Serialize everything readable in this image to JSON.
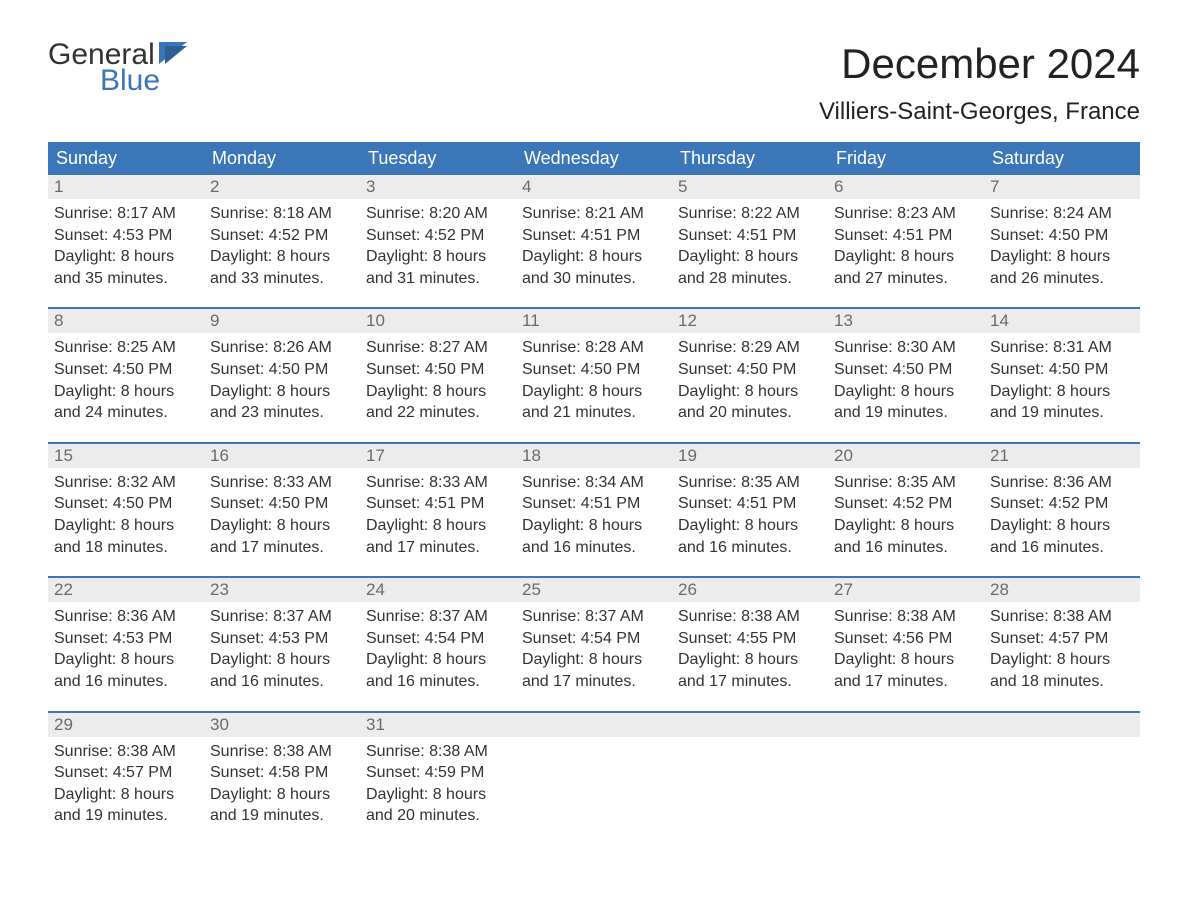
{
  "brand": {
    "top": "General",
    "bottom": "Blue"
  },
  "title": "December 2024",
  "location": "Villiers-Saint-Georges, France",
  "colors": {
    "header_bg": "#3a76b8",
    "header_text": "#ffffff",
    "daynum_bg": "#ececec",
    "daynum_text": "#6b6b6b",
    "body_text": "#333333",
    "rule": "#3a76b8",
    "brand_blue": "#3a76b8",
    "brand_dark": "#333333",
    "page_bg": "#ffffff"
  },
  "typography": {
    "title_fontsize": 42,
    "location_fontsize": 24,
    "dow_fontsize": 18,
    "daynum_fontsize": 17,
    "body_fontsize": 16,
    "logo_fontsize": 30
  },
  "days_of_week": [
    "Sunday",
    "Monday",
    "Tuesday",
    "Wednesday",
    "Thursday",
    "Friday",
    "Saturday"
  ],
  "weeks": [
    [
      {
        "n": "1",
        "sunrise": "8:17 AM",
        "sunset": "4:53 PM",
        "dl1": "Daylight: 8 hours",
        "dl2": "and 35 minutes."
      },
      {
        "n": "2",
        "sunrise": "8:18 AM",
        "sunset": "4:52 PM",
        "dl1": "Daylight: 8 hours",
        "dl2": "and 33 minutes."
      },
      {
        "n": "3",
        "sunrise": "8:20 AM",
        "sunset": "4:52 PM",
        "dl1": "Daylight: 8 hours",
        "dl2": "and 31 minutes."
      },
      {
        "n": "4",
        "sunrise": "8:21 AM",
        "sunset": "4:51 PM",
        "dl1": "Daylight: 8 hours",
        "dl2": "and 30 minutes."
      },
      {
        "n": "5",
        "sunrise": "8:22 AM",
        "sunset": "4:51 PM",
        "dl1": "Daylight: 8 hours",
        "dl2": "and 28 minutes."
      },
      {
        "n": "6",
        "sunrise": "8:23 AM",
        "sunset": "4:51 PM",
        "dl1": "Daylight: 8 hours",
        "dl2": "and 27 minutes."
      },
      {
        "n": "7",
        "sunrise": "8:24 AM",
        "sunset": "4:50 PM",
        "dl1": "Daylight: 8 hours",
        "dl2": "and 26 minutes."
      }
    ],
    [
      {
        "n": "8",
        "sunrise": "8:25 AM",
        "sunset": "4:50 PM",
        "dl1": "Daylight: 8 hours",
        "dl2": "and 24 minutes."
      },
      {
        "n": "9",
        "sunrise": "8:26 AM",
        "sunset": "4:50 PM",
        "dl1": "Daylight: 8 hours",
        "dl2": "and 23 minutes."
      },
      {
        "n": "10",
        "sunrise": "8:27 AM",
        "sunset": "4:50 PM",
        "dl1": "Daylight: 8 hours",
        "dl2": "and 22 minutes."
      },
      {
        "n": "11",
        "sunrise": "8:28 AM",
        "sunset": "4:50 PM",
        "dl1": "Daylight: 8 hours",
        "dl2": "and 21 minutes."
      },
      {
        "n": "12",
        "sunrise": "8:29 AM",
        "sunset": "4:50 PM",
        "dl1": "Daylight: 8 hours",
        "dl2": "and 20 minutes."
      },
      {
        "n": "13",
        "sunrise": "8:30 AM",
        "sunset": "4:50 PM",
        "dl1": "Daylight: 8 hours",
        "dl2": "and 19 minutes."
      },
      {
        "n": "14",
        "sunrise": "8:31 AM",
        "sunset": "4:50 PM",
        "dl1": "Daylight: 8 hours",
        "dl2": "and 19 minutes."
      }
    ],
    [
      {
        "n": "15",
        "sunrise": "8:32 AM",
        "sunset": "4:50 PM",
        "dl1": "Daylight: 8 hours",
        "dl2": "and 18 minutes."
      },
      {
        "n": "16",
        "sunrise": "8:33 AM",
        "sunset": "4:50 PM",
        "dl1": "Daylight: 8 hours",
        "dl2": "and 17 minutes."
      },
      {
        "n": "17",
        "sunrise": "8:33 AM",
        "sunset": "4:51 PM",
        "dl1": "Daylight: 8 hours",
        "dl2": "and 17 minutes."
      },
      {
        "n": "18",
        "sunrise": "8:34 AM",
        "sunset": "4:51 PM",
        "dl1": "Daylight: 8 hours",
        "dl2": "and 16 minutes."
      },
      {
        "n": "19",
        "sunrise": "8:35 AM",
        "sunset": "4:51 PM",
        "dl1": "Daylight: 8 hours",
        "dl2": "and 16 minutes."
      },
      {
        "n": "20",
        "sunrise": "8:35 AM",
        "sunset": "4:52 PM",
        "dl1": "Daylight: 8 hours",
        "dl2": "and 16 minutes."
      },
      {
        "n": "21",
        "sunrise": "8:36 AM",
        "sunset": "4:52 PM",
        "dl1": "Daylight: 8 hours",
        "dl2": "and 16 minutes."
      }
    ],
    [
      {
        "n": "22",
        "sunrise": "8:36 AM",
        "sunset": "4:53 PM",
        "dl1": "Daylight: 8 hours",
        "dl2": "and 16 minutes."
      },
      {
        "n": "23",
        "sunrise": "8:37 AM",
        "sunset": "4:53 PM",
        "dl1": "Daylight: 8 hours",
        "dl2": "and 16 minutes."
      },
      {
        "n": "24",
        "sunrise": "8:37 AM",
        "sunset": "4:54 PM",
        "dl1": "Daylight: 8 hours",
        "dl2": "and 16 minutes."
      },
      {
        "n": "25",
        "sunrise": "8:37 AM",
        "sunset": "4:54 PM",
        "dl1": "Daylight: 8 hours",
        "dl2": "and 17 minutes."
      },
      {
        "n": "26",
        "sunrise": "8:38 AM",
        "sunset": "4:55 PM",
        "dl1": "Daylight: 8 hours",
        "dl2": "and 17 minutes."
      },
      {
        "n": "27",
        "sunrise": "8:38 AM",
        "sunset": "4:56 PM",
        "dl1": "Daylight: 8 hours",
        "dl2": "and 17 minutes."
      },
      {
        "n": "28",
        "sunrise": "8:38 AM",
        "sunset": "4:57 PM",
        "dl1": "Daylight: 8 hours",
        "dl2": "and 18 minutes."
      }
    ],
    [
      {
        "n": "29",
        "sunrise": "8:38 AM",
        "sunset": "4:57 PM",
        "dl1": "Daylight: 8 hours",
        "dl2": "and 19 minutes."
      },
      {
        "n": "30",
        "sunrise": "8:38 AM",
        "sunset": "4:58 PM",
        "dl1": "Daylight: 8 hours",
        "dl2": "and 19 minutes."
      },
      {
        "n": "31",
        "sunrise": "8:38 AM",
        "sunset": "4:59 PM",
        "dl1": "Daylight: 8 hours",
        "dl2": "and 20 minutes."
      },
      null,
      null,
      null,
      null
    ]
  ],
  "labels": {
    "sunrise_prefix": "Sunrise: ",
    "sunset_prefix": "Sunset: "
  }
}
